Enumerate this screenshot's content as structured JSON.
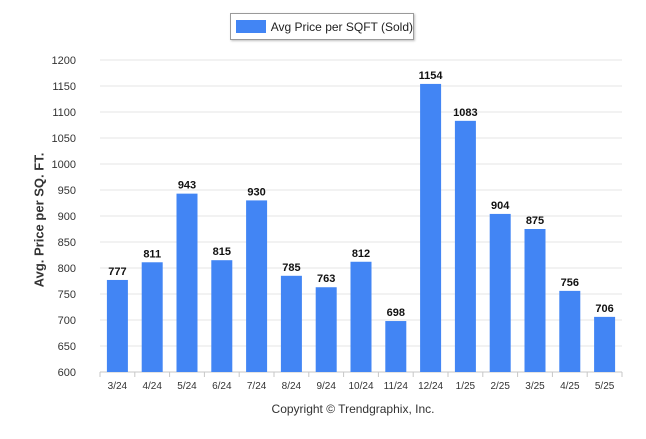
{
  "legend": {
    "label": "Avg Price per SQFT (Sold)"
  },
  "footer": {
    "copyright": "Copyright © Trendgraphix, Inc."
  },
  "colors": {
    "bar": "#4285f4",
    "grid": "#e6e6e6",
    "axis": "#c7c7c7",
    "text": "#333333"
  },
  "chart_data": {
    "type": "bar",
    "title": "",
    "xlabel": "",
    "ylabel": "Avg. Price per SQ. FT.",
    "categories": [
      "3/24",
      "4/24",
      "5/24",
      "6/24",
      "7/24",
      "8/24",
      "9/24",
      "10/24",
      "11/24",
      "12/24",
      "1/25",
      "2/25",
      "3/25",
      "4/25",
      "5/25"
    ],
    "series": [
      {
        "name": "Avg Price per SQFT (Sold)",
        "values": [
          777,
          811,
          943,
          815,
          930,
          785,
          763,
          812,
          698,
          1154,
          1083,
          904,
          875,
          756,
          706
        ]
      }
    ],
    "ylim": [
      600,
      1200
    ],
    "yticks": [
      600,
      650,
      700,
      750,
      800,
      850,
      900,
      950,
      1000,
      1050,
      1100,
      1150,
      1200
    ],
    "grid": true,
    "legend_position": "top-center",
    "data_labels": true
  }
}
